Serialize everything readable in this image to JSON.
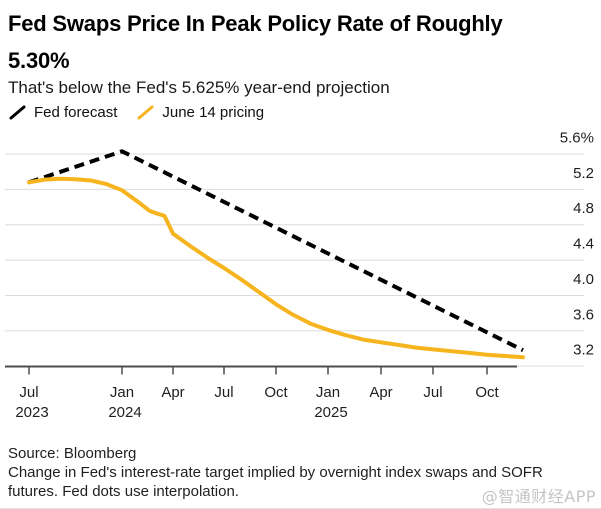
{
  "header": {
    "title_lines": [
      "Fed Swaps Price In Peak Policy Rate of Roughly",
      "5.30%"
    ],
    "subtitle": "That's below the Fed's 5.625% year-end projection"
  },
  "legend": [
    {
      "label": "Fed forecast",
      "color": "#000000"
    },
    {
      "label": "June 14 pricing",
      "color": "#F6B41F"
    }
  ],
  "chart_data": {
    "type": "line",
    "title": "Fed Swaps Price In Peak Policy Rate of Roughly 5.30%",
    "subtitle": "That's below the Fed's 5.625% year-end projection",
    "x_unit": "months since Jul 2023",
    "ylim": [
      3.2,
      5.6
    ],
    "grid": "horizontal",
    "legend_position": "top-left",
    "y_ticks": [
      {
        "v": 5.6,
        "label": "5.6%"
      },
      {
        "v": 5.2,
        "label": "5.2"
      },
      {
        "v": 4.8,
        "label": "4.8"
      },
      {
        "v": 4.4,
        "label": "4.4"
      },
      {
        "v": 4.0,
        "label": "4.0"
      },
      {
        "v": 3.6,
        "label": "3.6"
      },
      {
        "v": 3.2,
        "label": "3.2"
      }
    ],
    "x_ticks": [
      {
        "t": 0,
        "month": "Jul",
        "year": "2023"
      },
      {
        "t": 6,
        "month": "Jan",
        "year": "2024"
      },
      {
        "t": 9,
        "month": "Apr"
      },
      {
        "t": 12,
        "month": "Jul"
      },
      {
        "t": 15,
        "month": "Oct"
      },
      {
        "t": 18,
        "month": "Jan",
        "year": "2025"
      },
      {
        "t": 21,
        "month": "Apr"
      },
      {
        "t": 24,
        "month": "Jul"
      },
      {
        "t": 27,
        "month": "Oct"
      }
    ],
    "series": [
      {
        "name": "Fed forecast",
        "style": "dashed",
        "color": "#000000",
        "points": [
          [
            0,
            5.28
          ],
          [
            6,
            5.63
          ],
          [
            29,
            3.38
          ]
        ]
      },
      {
        "name": "June 14 pricing",
        "style": "solid",
        "color": "#F6B41F",
        "points": [
          [
            0,
            5.28
          ],
          [
            1,
            5.31
          ],
          [
            2,
            5.32
          ],
          [
            3,
            5.315
          ],
          [
            4,
            5.3
          ],
          [
            5,
            5.26
          ],
          [
            6,
            5.19
          ],
          [
            7,
            5.05
          ],
          [
            7.6,
            4.96
          ],
          [
            8,
            4.93
          ],
          [
            8.5,
            4.9
          ],
          [
            9,
            4.7
          ],
          [
            10,
            4.56
          ],
          [
            11,
            4.43
          ],
          [
            12,
            4.31
          ],
          [
            13,
            4.18
          ],
          [
            14,
            4.04
          ],
          [
            15,
            3.9
          ],
          [
            16,
            3.78
          ],
          [
            17,
            3.68
          ],
          [
            18,
            3.61
          ],
          [
            19,
            3.55
          ],
          [
            20,
            3.5
          ],
          [
            21,
            3.47
          ],
          [
            22,
            3.44
          ],
          [
            23,
            3.41
          ],
          [
            24,
            3.39
          ],
          [
            25,
            3.37
          ],
          [
            26,
            3.35
          ],
          [
            27,
            3.33
          ],
          [
            28,
            3.315
          ],
          [
            29,
            3.3
          ]
        ]
      }
    ]
  },
  "footer": {
    "source": "Source: Bloomberg",
    "note": "Change in Fed's interest-rate target implied by overnight index swaps and SOFR futures. Fed dots use interpolation.",
    "watermark": "@智通财经APP"
  }
}
